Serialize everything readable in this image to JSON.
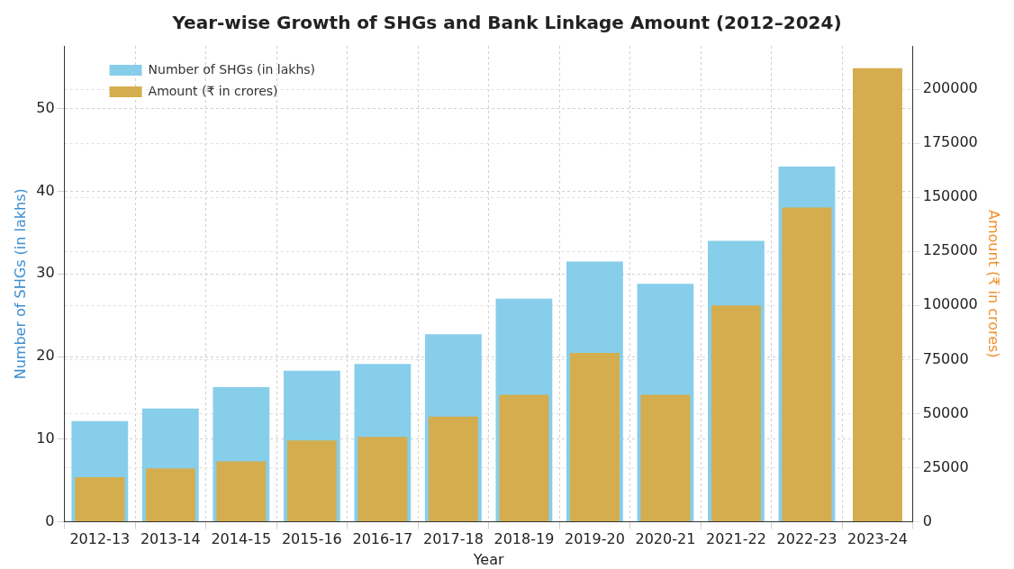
{
  "chart_data": {
    "type": "bar",
    "title": "Year-wise Growth of SHGs and Bank Linkage Amount (2012–2024)",
    "xlabel": "Year",
    "ylabel": "Number of SHGs (in lakhs)",
    "y2label": "Amount (₹ in crores)",
    "categories": [
      "2012-13",
      "2013-14",
      "2014-15",
      "2015-16",
      "2016-17",
      "2017-18",
      "2018-19",
      "2019-20",
      "2020-21",
      "2021-22",
      "2022-23",
      "2023-24"
    ],
    "series": [
      {
        "name": "Number of SHGs (in lakhs)",
        "color": "#87ceeb",
        "values": [
          12.2,
          13.7,
          16.3,
          18.3,
          19.1,
          22.7,
          27.0,
          31.5,
          28.8,
          34.0,
          43.0,
          null
        ]
      },
      {
        "name": "Amount (₹ in crores)",
        "color": "#d4ad4e",
        "axis": "y2",
        "values": [
          20600,
          24700,
          27900,
          37600,
          39300,
          48600,
          58700,
          78100,
          58700,
          100000,
          145300,
          209700
        ]
      }
    ],
    "ylim": [
      0,
      57.6
    ],
    "yticks": [
      0,
      10,
      20,
      30,
      40,
      50
    ],
    "y2lim": [
      0,
      220000
    ],
    "y2ticks": [
      0,
      25000,
      50000,
      75000,
      100000,
      125000,
      150000,
      175000,
      200000
    ],
    "grid": true,
    "legend": "top left"
  }
}
